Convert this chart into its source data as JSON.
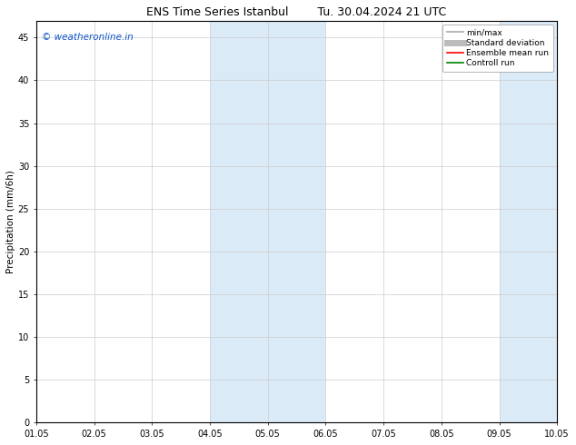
{
  "title_left": "ENS Time Series Istanbul",
  "title_right": "Tu. 30.04.2024 21 UTC",
  "ylabel": "Precipitation (mm/6h)",
  "xtick_labels": [
    "01.05",
    "02.05",
    "03.05",
    "04.05",
    "05.05",
    "06.05",
    "07.05",
    "08.05",
    "09.05",
    "10.05"
  ],
  "ylim": [
    0,
    47
  ],
  "yticks": [
    0,
    5,
    10,
    15,
    20,
    25,
    30,
    35,
    40,
    45
  ],
  "shaded_regions": [
    {
      "xstart": 4.0,
      "xend": 5.0,
      "color": "#daeaf7"
    },
    {
      "xstart": 5.0,
      "xend": 6.0,
      "color": "#daeaf7"
    },
    {
      "xstart": 9.0,
      "xend": 9.5,
      "color": "#daeaf7"
    },
    {
      "xstart": 9.5,
      "xend": 10.0,
      "color": "#daeaf7"
    }
  ],
  "watermark_text": "© weatheronline.in",
  "watermark_color": "#1155cc",
  "watermark_fontsize": 7.5,
  "legend_items": [
    {
      "label": "min/max",
      "color": "#aaaaaa",
      "lw": 1.2,
      "ls": "-"
    },
    {
      "label": "Standard deviation",
      "color": "#bbbbbb",
      "lw": 5,
      "ls": "-"
    },
    {
      "label": "Ensemble mean run",
      "color": "#ff0000",
      "lw": 1.2,
      "ls": "-"
    },
    {
      "label": "Controll run",
      "color": "#008000",
      "lw": 1.2,
      "ls": "-"
    }
  ],
  "bg_color": "#ffffff",
  "grid_color": "#cccccc",
  "title_fontsize": 9,
  "axis_fontsize": 7,
  "ylabel_fontsize": 7.5,
  "legend_fontsize": 6.5
}
